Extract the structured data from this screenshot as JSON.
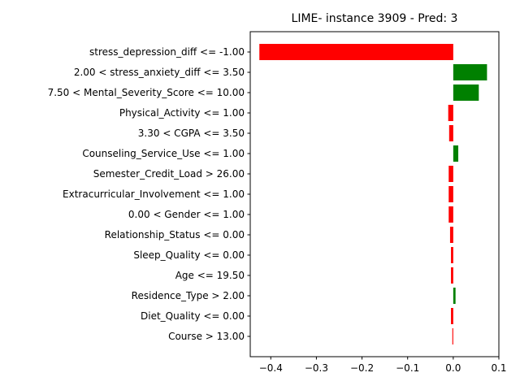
{
  "chart_data": {
    "type": "bar",
    "orientation": "horizontal",
    "title": "LIME- instance 3909 - Pred: 3",
    "xlabel": "",
    "ylabel": "",
    "xlim": [
      -0.445,
      0.1
    ],
    "grid": false,
    "x_ticks": [
      -0.4,
      -0.3,
      -0.2,
      -0.1,
      0.0,
      0.1
    ],
    "x_tick_labels": [
      "−0.4",
      "−0.3",
      "−0.2",
      "−0.1",
      "0.0",
      "0.1"
    ],
    "categories": [
      "stress_depression_diff <= -1.00",
      "2.00 < stress_anxiety_diff <= 3.50",
      "7.50 < Mental_Severity_Score <= 10.00",
      "Physical_Activity <= 1.00",
      "3.30 < CGPA <= 3.50",
      "Counseling_Service_Use <= 1.00",
      "Semester_Credit_Load > 26.00",
      "Extracurricular_Involvement <= 1.00",
      "0.00 < Gender <= 1.00",
      "Relationship_Status <= 0.00",
      "Sleep_Quality <= 0.00",
      "Age <= 19.50",
      "Residence_Type > 2.00",
      "Diet_Quality <= 0.00",
      "Course > 13.00"
    ],
    "values": [
      -0.425,
      0.074,
      0.056,
      -0.011,
      -0.009,
      0.011,
      -0.01,
      -0.01,
      -0.01,
      -0.007,
      -0.005,
      -0.005,
      0.005,
      -0.005,
      -0.002
    ],
    "colors": {
      "positive": "#008000",
      "negative": "#ff0000"
    }
  }
}
